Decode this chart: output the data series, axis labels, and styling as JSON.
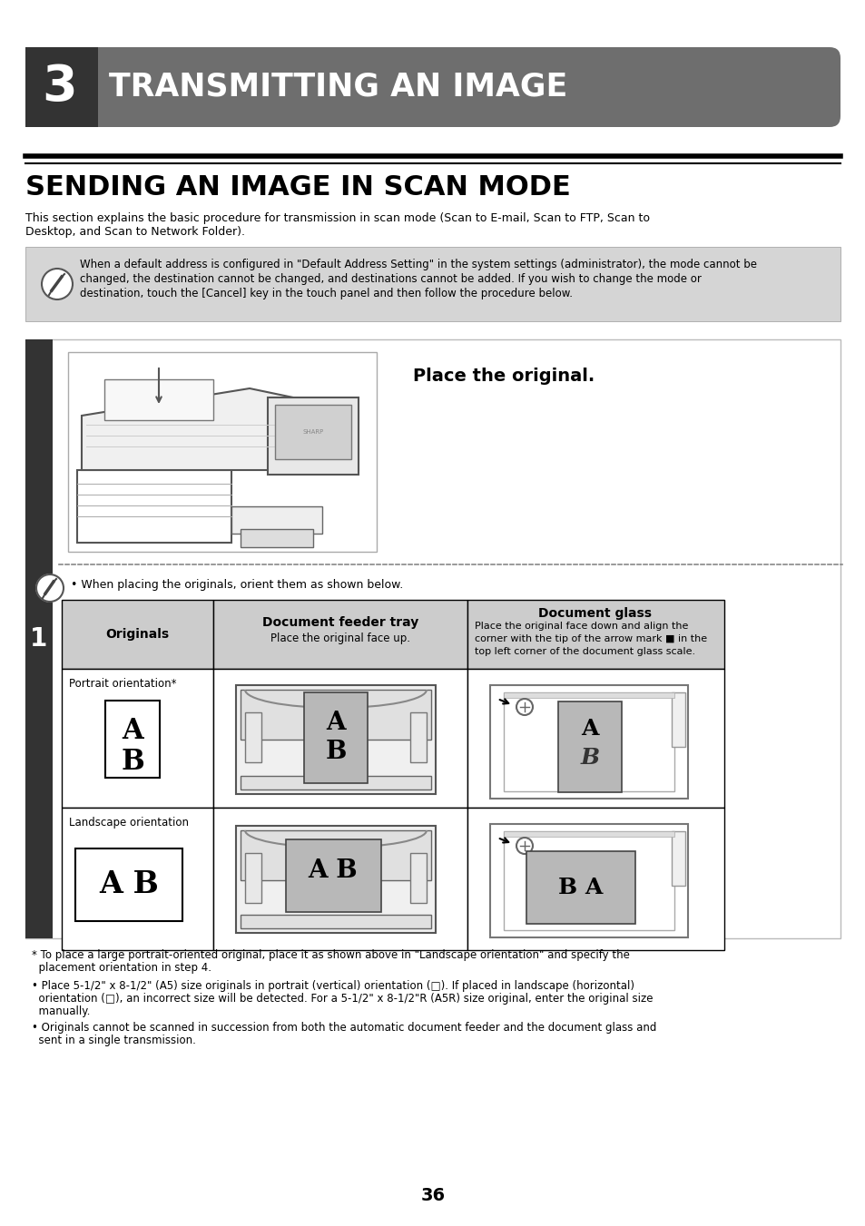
{
  "title_chapter": "3",
  "title_main": "TRANSMITTING AN IMAGE",
  "section_title": "SENDING AN IMAGE IN SCAN MODE",
  "section_desc_1": "This section explains the basic procedure for transmission in scan mode (Scan to E-mail, Scan to FTP, Scan to",
  "section_desc_2": "Desktop, and Scan to Network Folder).",
  "note_line1": "When a default address is configured in \"Default Address Setting\" in the system settings (administrator), the mode cannot be",
  "note_line2": "changed, the destination cannot be changed, and destinations cannot be added. If you wish to change the mode or",
  "note_line3": "destination, touch the [Cancel] key in the touch panel and then follow the procedure below.",
  "place_original": "Place the original.",
  "when_placing": "• When placing the originals, orient them as shown below.",
  "col1_header": "Originals",
  "col2_header": "Document feeder tray",
  "col2_sub": "Place the original face up.",
  "col3_header": "Document glass",
  "col3_sub1": "Place the original face down and align the",
  "col3_sub2": "corner with the tip of the arrow mark ■ in the",
  "col3_sub3": "top left corner of the document glass scale.",
  "row1_label": "Portrait orientation*",
  "row2_label": "Landscape orientation",
  "step_number": "1",
  "fn1_1": "* To place a large portrait-oriented original, place it as shown above in \"Landscape orientation\" and specify the",
  "fn1_2": "  placement orientation in step 4.",
  "fn2_1": "• Place 5-1/2\" x 8-1/2\" (A5) size originals in portrait (vertical) orientation (□). If placed in landscape (horizontal)",
  "fn2_2": "  orientation (□), an incorrect size will be detected. For a 5-1/2\" x 8-1/2\"R (A5R) size original, enter the original size",
  "fn2_3": "  manually.",
  "fn3_1": "• Originals cannot be scanned in succession from both the automatic document feeder and the document glass and",
  "fn3_2": "  sent in a single transmission.",
  "page_number": "36",
  "bg_color": "#ffffff",
  "header_bg": "#6e6e6e",
  "header_dark": "#333333",
  "gray_note_bg": "#d5d5d5",
  "table_header_bg": "#cccccc",
  "step_bar_color": "#333333"
}
